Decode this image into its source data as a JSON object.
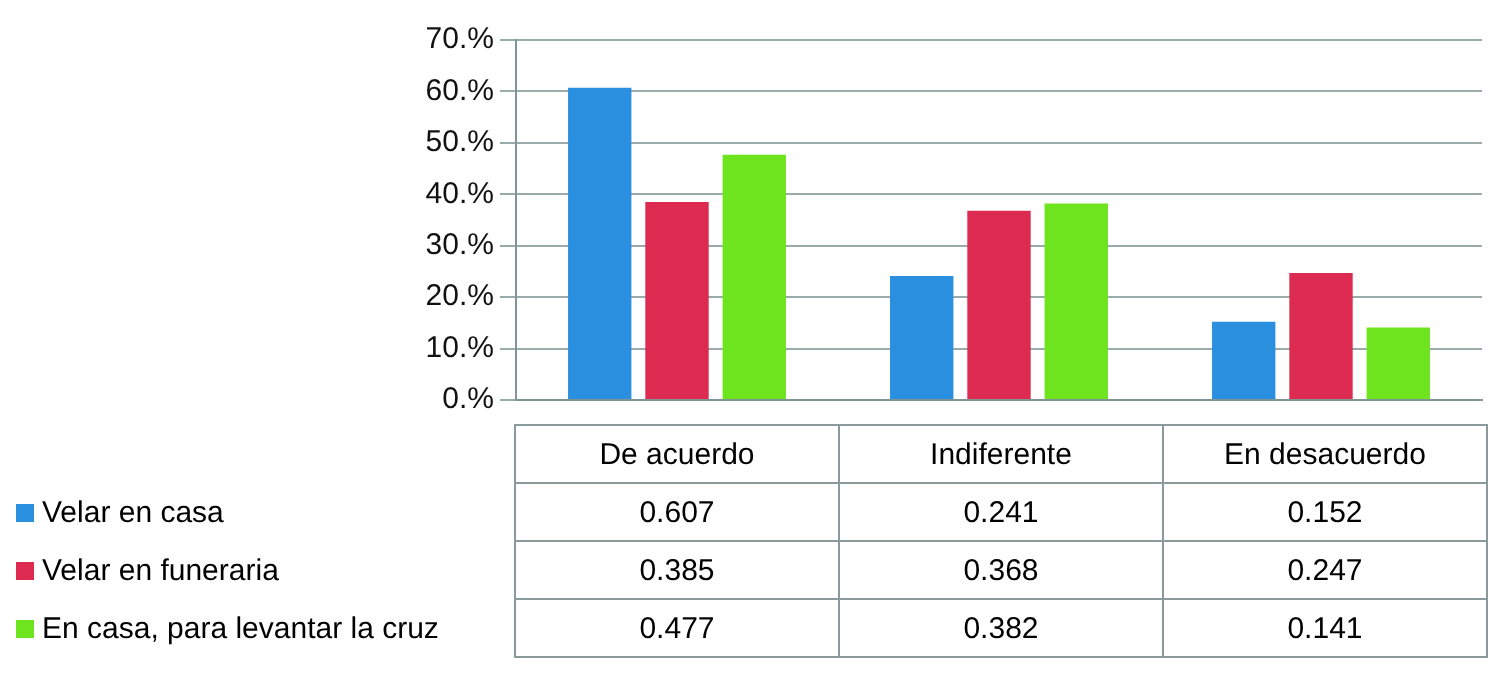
{
  "chart_data": {
    "type": "bar",
    "categories": [
      "De acuerdo",
      "Indiferente",
      "En desacuerdo"
    ],
    "series": [
      {
        "name": "Velar en casa",
        "color": "#2b8fe0",
        "values": [
          0.607,
          0.241,
          0.152
        ]
      },
      {
        "name": "Velar en funeraria",
        "color": "#dc2a50",
        "values": [
          0.385,
          0.368,
          0.247
        ]
      },
      {
        "name": "En casa, para levantar la cruz",
        "color": "#6ee41e",
        "values": [
          0.477,
          0.382,
          0.141
        ]
      }
    ],
    "ylim": [
      0,
      0.7
    ],
    "yticks": [
      {
        "value": 0,
        "label": "0.%"
      },
      {
        "value": 0.1,
        "label": "10.%"
      },
      {
        "value": 0.2,
        "label": "20.%"
      },
      {
        "value": 0.3,
        "label": "30.%"
      },
      {
        "value": 0.4,
        "label": "40.%"
      },
      {
        "value": 0.5,
        "label": "50.%"
      },
      {
        "value": 0.6,
        "label": "60.%"
      },
      {
        "value": 0.7,
        "label": "70.%"
      }
    ],
    "data_labels": true,
    "grid": "y",
    "legend": "bottom left"
  }
}
